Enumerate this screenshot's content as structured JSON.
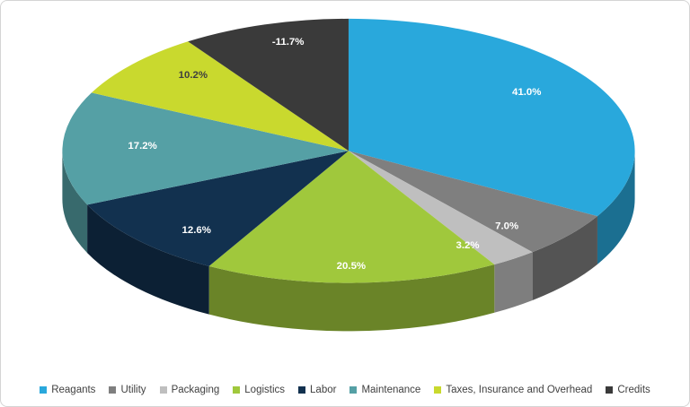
{
  "chart": {
    "background": "#FFFFFF",
    "border_color": "#D4D4D4",
    "legend_text_color": "#404040"
  },
  "chart_data": {
    "type": "pie",
    "style": "3d",
    "title": "",
    "legend_position": "bottom",
    "start_angle_deg": 0,
    "direction": "clockwise",
    "categories": [
      "Reagants",
      "Utility",
      "Packaging",
      "Logistics",
      "Labor",
      "Maintenance",
      "Taxes, Insurance and Overhead",
      "Credits"
    ],
    "values": [
      41.0,
      7.0,
      3.2,
      20.5,
      12.6,
      17.2,
      10.2,
      -11.7
    ],
    "labels": [
      "41.0%",
      "7.0%",
      "3.2%",
      "20.5%",
      "12.6%",
      "17.2%",
      "10.2%",
      "-11.7%"
    ],
    "colors": [
      "#29A8DC",
      "#7F7F7F",
      "#BFBFBF",
      "#A0C83C",
      "#12314F",
      "#55A0A5",
      "#C9D92E",
      "#3A3A3A"
    ],
    "label_colors": [
      "#FFFFFF",
      "#FFFFFF",
      "#FFFFFF",
      "#FFFFFF",
      "#FFFFFF",
      "#FFFFFF",
      "#3F3F3F",
      "#FFFFFF"
    ]
  }
}
